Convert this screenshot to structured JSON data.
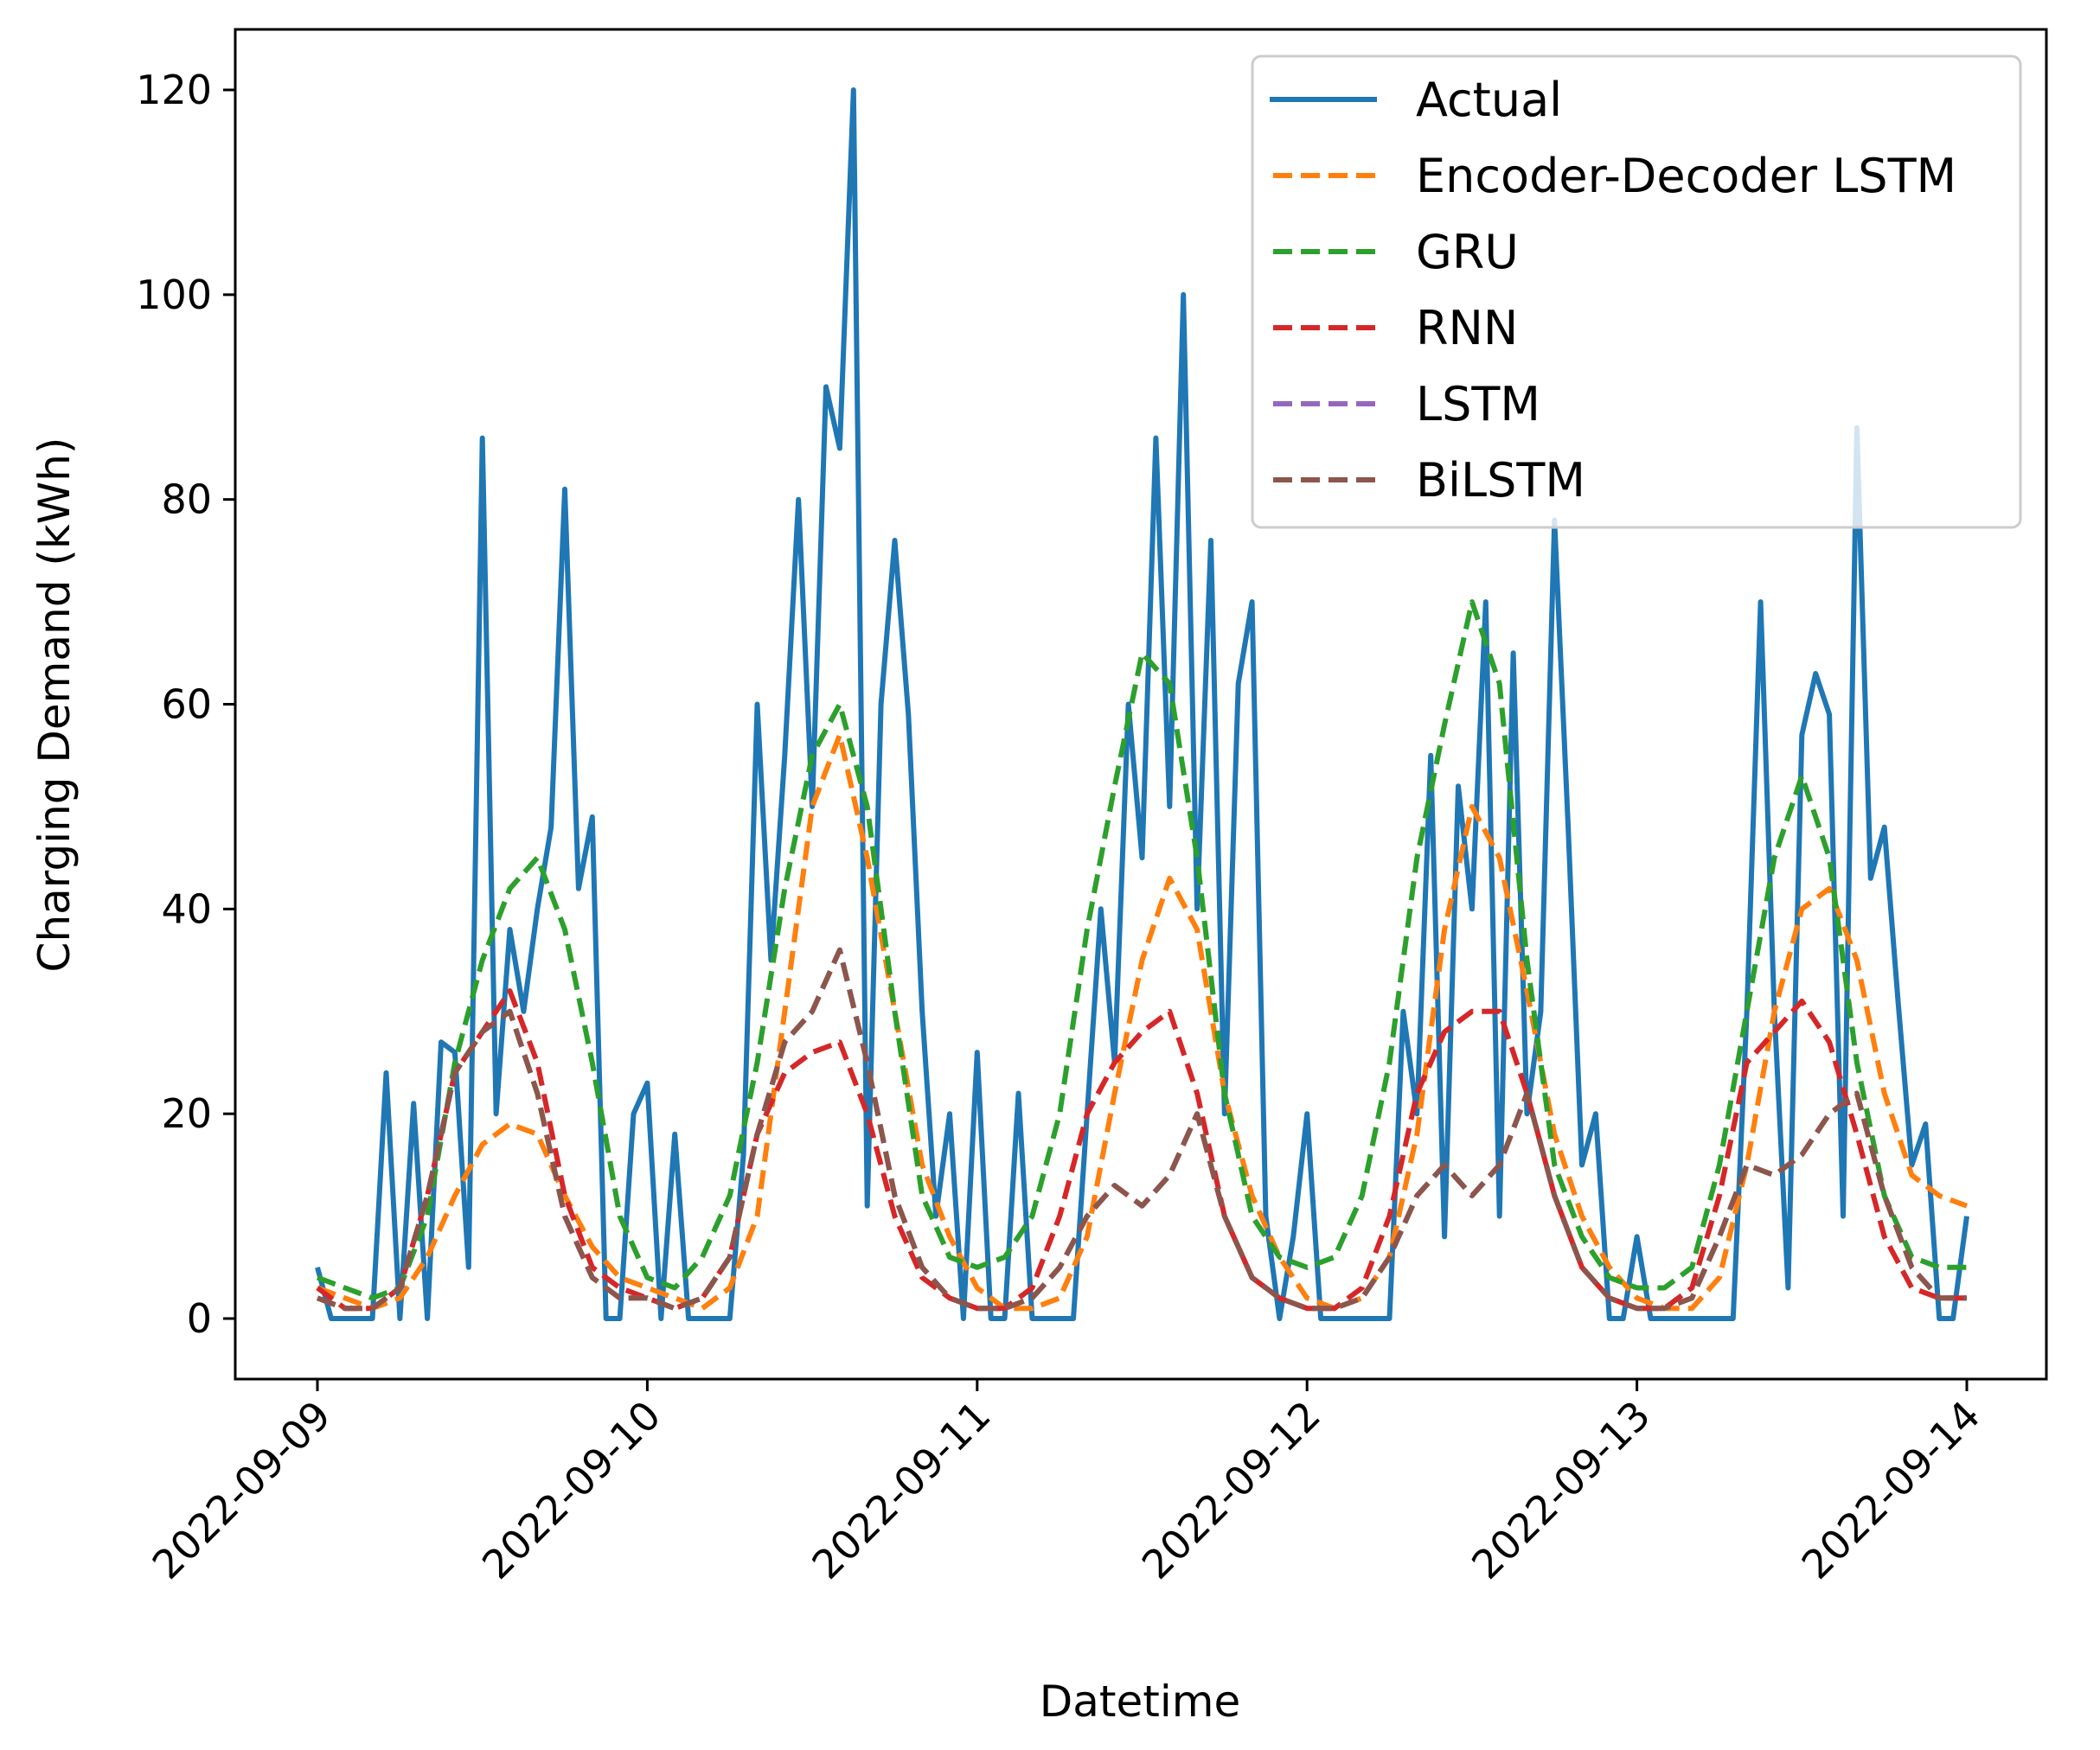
{
  "chart_data": {
    "type": "line",
    "title": "",
    "xlabel": "Datetime",
    "ylabel": "Charging Demand (kWh)",
    "x_unit": "hours since 2022-09-09 00:00",
    "xlim": [
      -7.5,
      127.5
    ],
    "ylim": [
      -6,
      126
    ],
    "x_ticks": [
      0,
      24,
      48,
      72,
      96,
      120
    ],
    "x_tick_labels": [
      "2022-09-09",
      "2022-09-10",
      "2022-09-11",
      "2022-09-12",
      "2022-09-13",
      "2022-09-14"
    ],
    "y_ticks": [
      0,
      20,
      40,
      60,
      80,
      100,
      120
    ],
    "y_tick_labels": [
      "0",
      "20",
      "40",
      "60",
      "80",
      "100",
      "120"
    ],
    "grid": false,
    "legend_position": "top-right",
    "series": [
      {
        "name": "Actual",
        "color": "#1f77b4",
        "style": "solid",
        "step_hours": 1,
        "values": [
          5,
          0,
          0,
          0,
          0,
          24,
          0,
          21,
          0,
          27,
          26,
          5,
          86,
          20,
          38,
          30,
          40,
          48,
          81,
          42,
          49,
          0,
          0,
          20,
          23,
          0,
          18,
          0,
          0,
          0,
          0,
          16,
          60,
          35,
          55,
          80,
          50,
          91,
          85,
          120,
          11,
          60,
          76,
          59,
          30,
          10,
          20,
          0,
          26,
          0,
          0,
          22,
          0,
          0,
          0,
          0,
          20,
          40,
          25,
          60,
          45,
          86,
          50,
          100,
          40,
          76,
          20,
          62,
          70,
          10,
          0,
          8,
          20,
          0,
          0,
          0,
          0,
          0,
          0,
          30,
          20,
          55,
          8,
          52,
          40,
          70,
          10,
          65,
          20,
          30,
          78,
          48,
          15,
          20,
          0,
          0,
          8,
          0,
          0,
          0,
          0,
          0,
          0,
          0,
          30,
          70,
          30,
          3,
          57,
          63,
          59,
          10,
          87,
          43,
          48,
          31,
          15,
          19,
          0,
          0,
          10
        ]
      },
      {
        "name": "Encoder-Decoder LSTM",
        "color": "#ff7f0e",
        "style": "dashed",
        "step_hours": 2,
        "values": [
          3,
          2,
          1,
          2,
          6,
          12,
          17,
          19,
          18,
          12,
          7,
          4,
          3,
          2,
          1,
          3,
          10,
          30,
          50,
          57,
          45,
          30,
          15,
          8,
          3,
          1,
          1,
          2,
          8,
          22,
          35,
          43,
          38,
          22,
          12,
          6,
          2,
          1,
          2,
          6,
          18,
          38,
          50,
          45,
          32,
          18,
          10,
          5,
          2,
          1,
          1,
          4,
          15,
          30,
          40,
          42,
          35,
          22,
          14,
          12,
          11
        ]
      },
      {
        "name": "GRU",
        "color": "#2ca02c",
        "style": "dashed",
        "step_hours": 2,
        "values": [
          4,
          3,
          2,
          3,
          10,
          25,
          35,
          42,
          45,
          38,
          25,
          10,
          4,
          3,
          6,
          12,
          25,
          42,
          55,
          60,
          50,
          30,
          12,
          6,
          5,
          6,
          10,
          20,
          38,
          52,
          65,
          62,
          45,
          22,
          10,
          6,
          5,
          6,
          12,
          25,
          45,
          58,
          70,
          62,
          35,
          15,
          8,
          4,
          3,
          3,
          5,
          15,
          30,
          45,
          53,
          45,
          25,
          12,
          6,
          5,
          5
        ]
      },
      {
        "name": "RNN",
        "color": "#d62728",
        "style": "dashed",
        "step_hours": 2,
        "values": [
          3,
          1,
          1,
          3,
          12,
          24,
          28,
          32,
          25,
          12,
          5,
          3,
          2,
          1,
          2,
          6,
          18,
          24,
          26,
          27,
          20,
          10,
          4,
          2,
          1,
          1,
          3,
          10,
          20,
          25,
          28,
          30,
          22,
          10,
          4,
          2,
          1,
          1,
          3,
          10,
          22,
          28,
          30,
          30,
          22,
          12,
          5,
          2,
          1,
          1,
          3,
          12,
          25,
          28,
          31,
          27,
          18,
          8,
          3,
          2,
          2
        ]
      },
      {
        "name": "LSTM",
        "color": "#9467bd",
        "style": "dashed",
        "step_hours": 2,
        "values": [
          2,
          1,
          1,
          3,
          12,
          24,
          28,
          30,
          22,
          10,
          4,
          2,
          2,
          1,
          2,
          6,
          18,
          27,
          30,
          36,
          25,
          12,
          5,
          2,
          1,
          1,
          2,
          5,
          10,
          13,
          11,
          14,
          20,
          10,
          4,
          2,
          1,
          1,
          2,
          6,
          12,
          15,
          12,
          15,
          22,
          12,
          5,
          2,
          1,
          1,
          2,
          8,
          15,
          14,
          16,
          20,
          22,
          12,
          5,
          2,
          2
        ]
      },
      {
        "name": "BiLSTM",
        "color": "#8c564b",
        "style": "dashed",
        "step_hours": 2,
        "values": [
          2,
          1,
          1,
          3,
          12,
          24,
          28,
          30,
          22,
          10,
          4,
          2,
          2,
          1,
          2,
          6,
          18,
          27,
          30,
          36,
          25,
          12,
          5,
          2,
          1,
          1,
          2,
          5,
          10,
          13,
          11,
          14,
          20,
          10,
          4,
          2,
          1,
          1,
          2,
          6,
          12,
          15,
          12,
          15,
          22,
          12,
          5,
          2,
          1,
          1,
          2,
          8,
          15,
          14,
          16,
          20,
          22,
          12,
          5,
          2,
          2
        ]
      }
    ]
  }
}
